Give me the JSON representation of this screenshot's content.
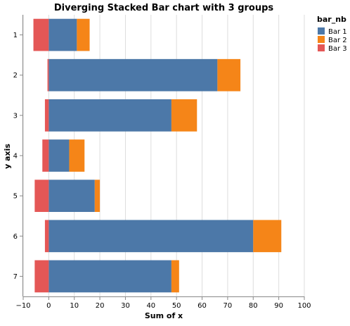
{
  "chart_data": {
    "type": "bar",
    "orientation": "horizontal",
    "stacked": "diverging",
    "title": "Diverging Stacked Bar chart with 3 groups",
    "xlabel": "Sum of x",
    "ylabel": "y axis",
    "xlim": [
      -10,
      100
    ],
    "x_ticks": [
      -10,
      0,
      10,
      20,
      30,
      40,
      50,
      60,
      70,
      80,
      90,
      100
    ],
    "categories": [
      "1",
      "2",
      "3",
      "4",
      "5",
      "6",
      "7"
    ],
    "series": [
      {
        "name": "Bar 1",
        "color": "#4c78a8",
        "values": [
          11,
          66,
          48,
          8,
          18,
          80,
          48
        ]
      },
      {
        "name": "Bar 2",
        "color": "#f58518",
        "values": [
          5,
          9,
          10,
          6,
          2,
          11,
          3
        ]
      },
      {
        "name": "Bar 3",
        "color": "#e45756",
        "values": [
          -6,
          -0.5,
          -1.5,
          -2.5,
          -5.5,
          -1.5,
          -5.5
        ]
      }
    ],
    "legend": {
      "title": "bar_nb",
      "position": "right"
    },
    "grid": true
  }
}
